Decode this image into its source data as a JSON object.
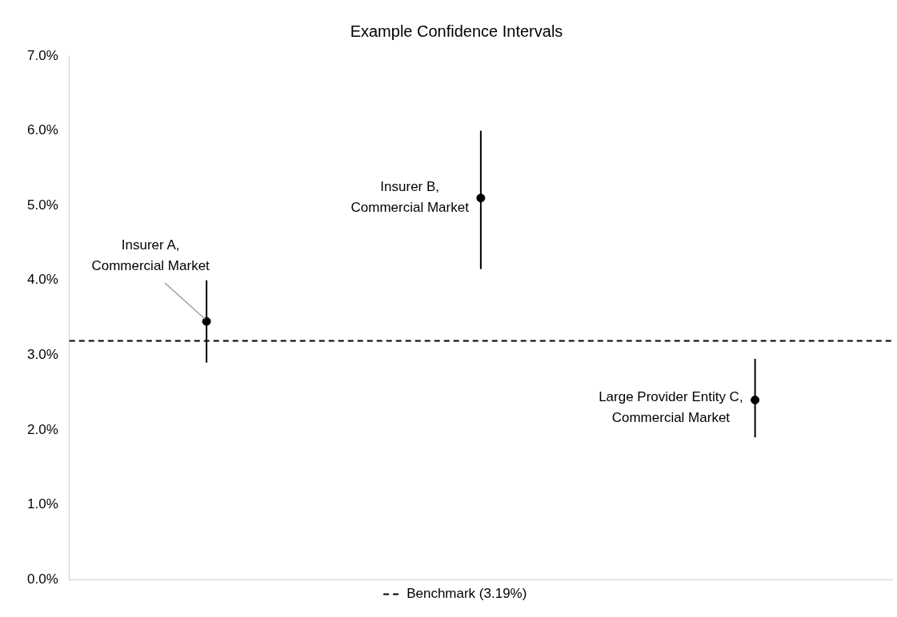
{
  "chart_data": {
    "type": "scatter",
    "title": "Example Confidence Intervals",
    "categories": [
      null,
      null,
      null
    ],
    "series": [
      {
        "color": "#000000",
        "values": [
          3.45,
          5.1,
          2.4
        ],
        "errors": [
          [
            2.9,
            4.0
          ],
          [
            4.15,
            6.0
          ],
          [
            1.9,
            2.95
          ]
        ]
      }
    ],
    "annotations": [
      "Insurer A,\nCommercial Market",
      "Insurer B,\nCommercial Market",
      "Large Provider Entity C,\nCommercial Market"
    ],
    "ylim": [
      0,
      7
    ],
    "yticks": [
      {
        "value": 0,
        "label": "0.0%"
      },
      {
        "value": 1,
        "label": "1.0%"
      },
      {
        "value": 2,
        "label": "2.0%"
      },
      {
        "value": 3,
        "label": "3.0%"
      },
      {
        "value": 4,
        "label": "4.0%"
      },
      {
        "value": 5,
        "label": "5.0%"
      },
      {
        "value": 6,
        "label": "6.0%"
      },
      {
        "value": 7,
        "label": "7.0%"
      }
    ],
    "ref_lines": [
      {
        "axis": "y",
        "value": 3.19,
        "label": "Benchmark (3.19%)",
        "color": "#000000",
        "line_style": "dashed"
      }
    ],
    "legend": "bottom",
    "grid": false,
    "marker": "circle",
    "tick_labels": "y"
  }
}
